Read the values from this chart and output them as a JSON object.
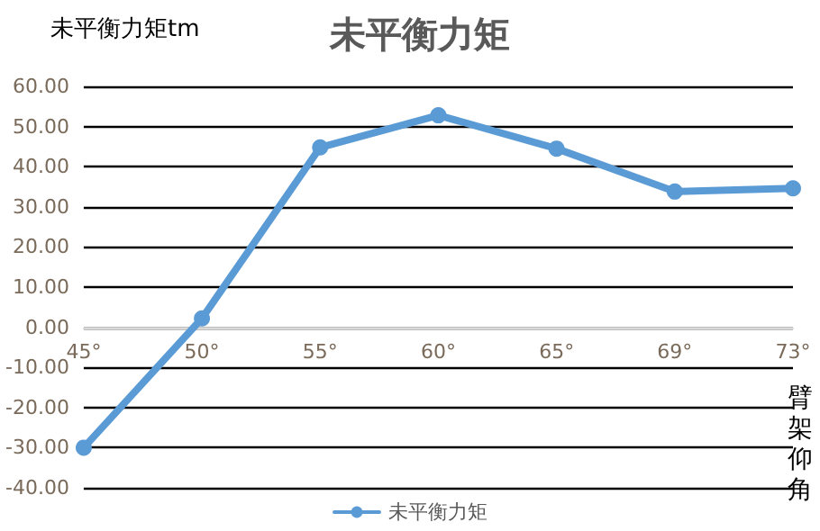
{
  "chart_data": {
    "type": "line",
    "title": "未平衡力矩",
    "ylabel": "未平衡力矩tm",
    "xlabel": "臂架仰角",
    "categories": [
      "45°",
      "50°",
      "55°",
      "60°",
      "65°",
      "69°",
      "73°"
    ],
    "series": [
      {
        "name": "未平衡力矩",
        "color": "#5b9bd5",
        "values": [
          -30,
          2.2,
          44.8,
          52.8,
          44.5,
          33.8,
          34.6
        ]
      }
    ],
    "ylim": [
      -40,
      60
    ],
    "yticks": [
      {
        "value": -40,
        "label": "-40.00"
      },
      {
        "value": -30,
        "label": "-30.00"
      },
      {
        "value": -20,
        "label": "-20.00"
      },
      {
        "value": -10,
        "label": "-10.00"
      },
      {
        "value": 0,
        "label": "0.00"
      },
      {
        "value": 10,
        "label": "10.00"
      },
      {
        "value": 20,
        "label": "20.00"
      },
      {
        "value": 30,
        "label": "30.00"
      },
      {
        "value": 40,
        "label": "40.00"
      },
      {
        "value": 50,
        "label": "50.00"
      },
      {
        "value": 60,
        "label": "60.00"
      }
    ],
    "grid": "y",
    "legend": "bottom",
    "marker": "circle",
    "line_style": "solid"
  }
}
